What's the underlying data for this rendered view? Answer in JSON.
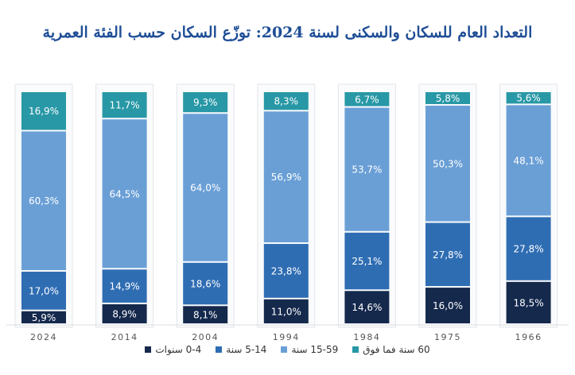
{
  "chart_data": {
    "type": "bar",
    "stacked": true,
    "title": "التعداد العام للسكان والسكنى لسنة 2024: توزّع السكان حسب الفئة العمرية",
    "categories": [
      "2024",
      "2014",
      "2004",
      "1994",
      "1984",
      "1975",
      "1966"
    ],
    "series": [
      {
        "name": "0-4 سنوات",
        "color": "#15294d",
        "values": [
          5.9,
          8.9,
          8.1,
          11.0,
          14.6,
          16.0,
          18.5
        ],
        "labels": [
          "5,9%",
          "8,9%",
          "8,1%",
          "11,0%",
          "14,6%",
          "16,0%",
          "18,5%"
        ]
      },
      {
        "name": "5-14 سنة",
        "color": "#2f6db3",
        "values": [
          17.0,
          14.9,
          18.6,
          23.8,
          25.1,
          27.8,
          27.8
        ],
        "labels": [
          "17,0%",
          "14,9%",
          "18,6%",
          "23,8%",
          "25,1%",
          "27,8%",
          "27,8%"
        ]
      },
      {
        "name": "15-59 سنة",
        "color": "#6a9fd6",
        "values": [
          60.3,
          64.5,
          64.0,
          56.9,
          53.7,
          50.3,
          48.1
        ],
        "labels": [
          "60,3%",
          "64,5%",
          "64,0%",
          "56,9%",
          "53,7%",
          "50,3%",
          "48,1%"
        ]
      },
      {
        "name": "60 سنة فما فوق",
        "color": "#2898a6",
        "values": [
          16.9,
          11.7,
          9.3,
          8.3,
          6.7,
          5.8,
          5.6
        ],
        "labels": [
          "16,9%",
          "11,7%",
          "9,3%",
          "8,3%",
          "6,7%",
          "5,8%",
          "5,6%"
        ]
      }
    ],
    "ylim": [
      0,
      100
    ],
    "legend": "bottom"
  }
}
